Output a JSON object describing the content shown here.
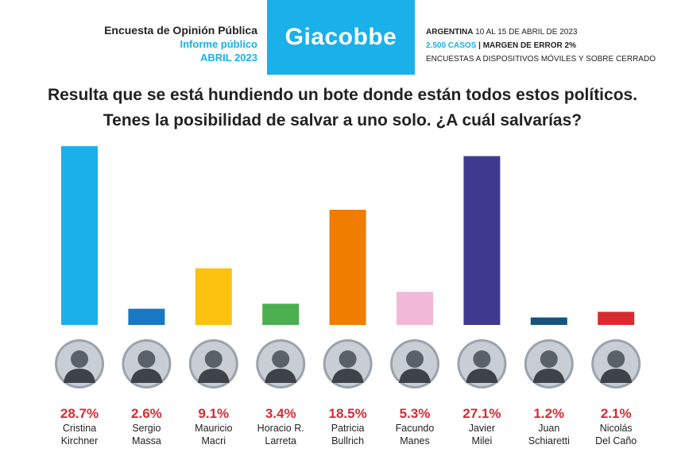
{
  "header": {
    "left_title": "Encuesta de Opinión Pública",
    "left_sub1": "Informe público",
    "left_sub2": "ABRIL 2023",
    "logo": "Giacobbe",
    "right_line1_bold": "ARGENTINA",
    "right_line1_rest": " 10 AL 15 DE ABRIL DE 2023",
    "right_line2_blue": "2.500 CASOS",
    "right_line2_rest": " | MARGEN DE ERROR 2%",
    "right_line3": "ENCUESTAS A DISPOSITIVOS MÓVILES Y SOBRE CERRADO"
  },
  "question": {
    "line1": "Resulta que se está hundiendo un bote donde están todos estos políticos.",
    "line2": "Tenes la posibilidad de salvar a uno solo. ¿A cuál salvarías?"
  },
  "chart_data": {
    "type": "bar",
    "categories": [
      "Cristina Kirchner",
      "Sergio Massa",
      "Mauricio Macri",
      "Horacio R. Larreta",
      "Patricia Bullrich",
      "Facundo Manes",
      "Javier Milei",
      "Juan Schiaretti",
      "Nicolás Del Caño"
    ],
    "label_lines": [
      [
        "Cristina",
        "Kirchner"
      ],
      [
        "Sergio",
        "Massa"
      ],
      [
        "Mauricio",
        "Macri"
      ],
      [
        "Horacio R.",
        "Larreta"
      ],
      [
        "Patricia",
        "Bullrich"
      ],
      [
        "Facundo",
        "Manes"
      ],
      [
        "Javier",
        "Milei"
      ],
      [
        "Juan",
        "Schiaretti"
      ],
      [
        "Nicolás",
        "Del Caño"
      ]
    ],
    "values": [
      28.7,
      2.6,
      9.1,
      3.4,
      18.5,
      5.3,
      27.1,
      1.2,
      2.1
    ],
    "value_labels": [
      "28.7%",
      "2.6%",
      "9.1%",
      "3.4%",
      "18.5%",
      "5.3%",
      "27.1%",
      "1.2%",
      "2.1%"
    ],
    "colors": [
      "#1ab0ea",
      "#1679c2",
      "#fdc20f",
      "#4caf50",
      "#f07d00",
      "#f2b8d8",
      "#3f3a8f",
      "#15557c",
      "#d62c2f"
    ],
    "value_label_color": "#d62c2f",
    "ylim": [
      0,
      28.7
    ],
    "grid": false,
    "legend": "none"
  }
}
